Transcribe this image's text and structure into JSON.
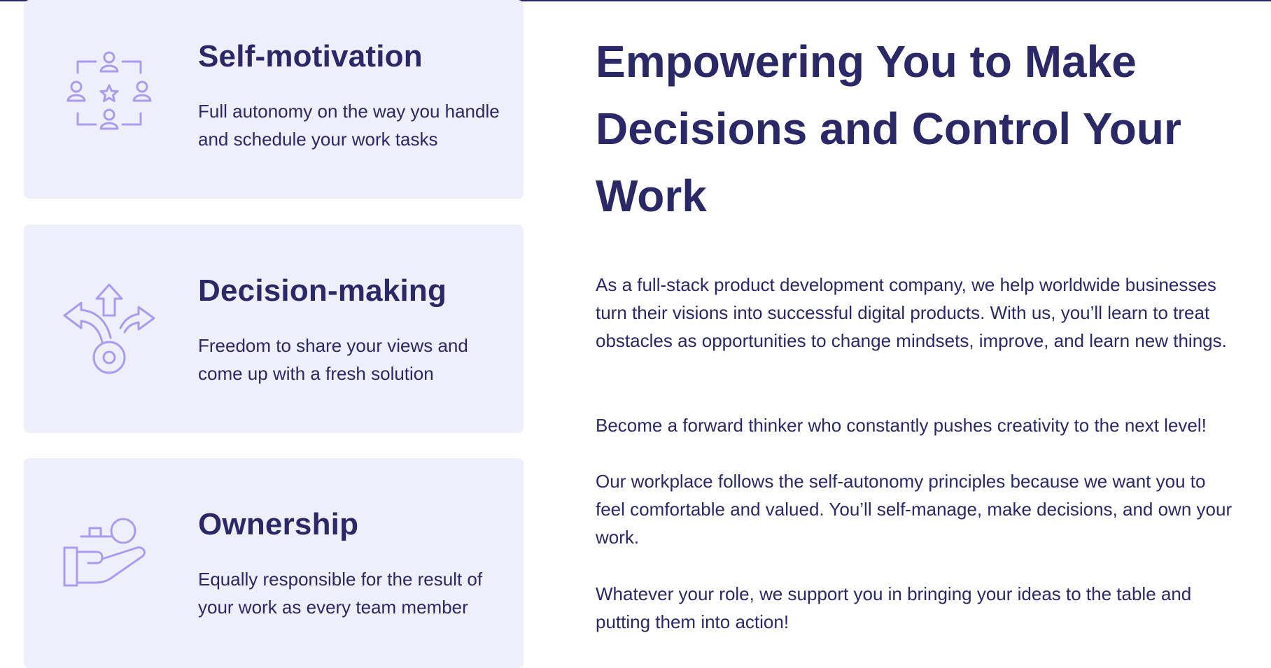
{
  "cards": [
    {
      "icon": "team-star-icon",
      "title": "Self-motivation",
      "description": "Full autonomy on the way you handle and schedule your work tasks"
    },
    {
      "icon": "branching-arrows-icon",
      "title": "Decision-making",
      "description": "Freedom to share your views and come up with a fresh solution"
    },
    {
      "icon": "hand-holding-key-icon",
      "title": "Ownership",
      "description": "Equally responsible for the result of your work as every team member"
    }
  ],
  "headline": "Empowering You to Make Decisions and Control Your Work",
  "paragraphs": [
    "As a full-stack product development company, we help worldwide businesses turn their visions into successful digital products. With us, you’ll learn to treat obstacles as opportunities to change mindsets, improve, and learn new things.",
    "Become a forward thinker who constantly pushes creativity to the next level!",
    "Our workplace follows the self-autonomy principles because we want you to feel comfortable and valued. You’ll self-manage, make decisions, and own your work.",
    "Whatever your role, we support you in bringing your ideas to the table and putting them into action!"
  ],
  "colors": {
    "text": "#2a2866",
    "card_bg": "#efeefb",
    "icon": "#a99cf0"
  }
}
